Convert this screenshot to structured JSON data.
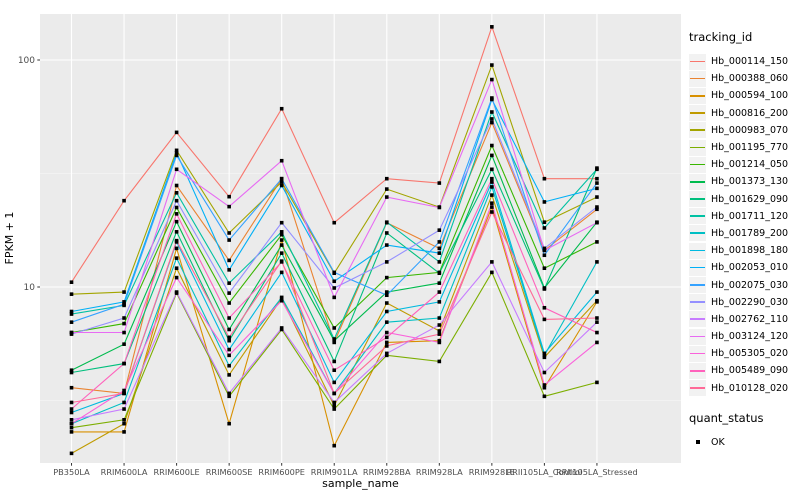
{
  "figure": {
    "xlabel": "sample_name",
    "ylabel": "FPKM + 1",
    "legend_title": "tracking_id",
    "quant_legend_title": "quant_status"
  },
  "colors": {
    "panel_bg": "#EBEBEB",
    "grid_major": "#FFFFFF",
    "grid_minor": "#F7F7F7",
    "tick_mark": "#333333",
    "tick_text": "#4D4D4D",
    "point": "#000000",
    "legend_key_bg": "#F2F2F2"
  },
  "chart_data": {
    "type": "line",
    "title": "",
    "xlabel": "sample_name",
    "ylabel": "FPKM + 1",
    "y_scale": "log10",
    "ylim": [
      1.68,
      160
    ],
    "y_ticks": [
      10,
      100
    ],
    "y_minor_gridlines": [
      3.1623,
      31.6228
    ],
    "grid": true,
    "legend_position": "right",
    "legend_title": "tracking_id",
    "point_marker": "black-square",
    "quant_status": {
      "title": "quant_status",
      "items": [
        {
          "label": "OK",
          "marker": "black-square"
        }
      ]
    },
    "categories": [
      "PB350LA",
      "RRIM600LA",
      "RRIM600LE",
      "RRIM600SE",
      "RRIM600PE",
      "RRIM901LA",
      "RRIM928BA",
      "RRIM928LA",
      "RRIM928LE",
      "RRII105LA_Control",
      "RRII105LA_Stressed"
    ],
    "series": [
      {
        "name": "Hb_000114_150",
        "color": "#F8766D",
        "values": [
          10.5,
          24,
          48,
          25,
          61,
          19.2,
          30,
          28.7,
          140,
          30,
          30
        ]
      },
      {
        "name": "Hb_000388_060",
        "color": "#EA8331",
        "values": [
          3.6,
          3.4,
          28,
          13.1,
          30,
          5.7,
          19.2,
          14.8,
          53,
          14.5,
          22
        ]
      },
      {
        "name": "Hb_000594_100",
        "color": "#D89000",
        "values": [
          2.3,
          2.3,
          14.8,
          2.5,
          16.1,
          2.0,
          5.7,
          5.8,
          22.5,
          3.6,
          8.6
        ]
      },
      {
        "name": "Hb_000816_200",
        "color": "#C09B00",
        "values": [
          1.85,
          2.5,
          12.1,
          4.1,
          8.9,
          3.0,
          8.5,
          6.4,
          25.4,
          4.9,
          8.7
        ]
      },
      {
        "name": "Hb_000983_070",
        "color": "#A3A500",
        "values": [
          9.3,
          9.5,
          40,
          17.3,
          29,
          11.5,
          27,
          22.5,
          95,
          19.3,
          24.9
        ]
      },
      {
        "name": "Hb_001195_770",
        "color": "#7CAE00",
        "values": [
          2.4,
          2.6,
          9.4,
          3.3,
          6.5,
          2.9,
          5.0,
          4.7,
          11.6,
          3.3,
          3.8
        ]
      },
      {
        "name": "Hb_001214_050",
        "color": "#39B600",
        "values": [
          6.3,
          6.9,
          22.4,
          8.5,
          17,
          6.6,
          11.0,
          11.6,
          42,
          12.1,
          15.8
        ]
      },
      {
        "name": "Hb_001373_130",
        "color": "#00BB4E",
        "values": [
          4.3,
          5.6,
          19.4,
          6.5,
          15.3,
          5.8,
          9.5,
          10.4,
          38,
          9.9,
          19.3
        ]
      },
      {
        "name": "Hb_001629_090",
        "color": "#00BF7D",
        "values": [
          4.2,
          4.6,
          17.5,
          5.8,
          14.1,
          4.7,
          17.3,
          11.5,
          33,
          9.8,
          33.4
        ]
      },
      {
        "name": "Hb_001711_120",
        "color": "#00C1A3",
        "values": [
          7.6,
          8.3,
          26,
          10.4,
          17.5,
          5.9,
          19.3,
          12.9,
          59,
          18.2,
          33
        ]
      },
      {
        "name": "Hb_001789_200",
        "color": "#00BFC4",
        "values": [
          2.5,
          3.1,
          13.4,
          4.5,
          9.0,
          3.4,
          7.0,
          7.3,
          27.6,
          5.0,
          12.9
        ]
      },
      {
        "name": "Hb_001898_180",
        "color": "#00BAE0",
        "values": [
          2.8,
          3.4,
          15.8,
          5.3,
          11.6,
          3.8,
          7.8,
          8.6,
          29,
          5.1,
          9.5
        ]
      },
      {
        "name": "Hb_002053_010",
        "color": "#00B0F6",
        "values": [
          7.8,
          8.6,
          39,
          11.9,
          28,
          10.6,
          15.3,
          14.1,
          67,
          23.7,
          27.2
        ]
      },
      {
        "name": "Hb_002075_030",
        "color": "#35A2FF",
        "values": [
          7.0,
          8.4,
          38,
          16.1,
          30,
          11.6,
          9.2,
          15.8,
          68,
          13.8,
          28.7
        ]
      },
      {
        "name": "Hb_002290_030",
        "color": "#9590FF",
        "values": [
          6.2,
          7.3,
          24,
          9.4,
          19.2,
          9.9,
          12.9,
          17.8,
          55,
          14.8,
          22.5
        ]
      },
      {
        "name": "Hb_002762_110",
        "color": "#C77CFF",
        "values": [
          2.6,
          2.9,
          9.5,
          3.4,
          6.6,
          3.1,
          5.1,
          6.8,
          12.9,
          4.2,
          7.0
        ]
      },
      {
        "name": "Hb_003124_120",
        "color": "#E76BF3",
        "values": [
          6.3,
          6.3,
          33,
          22.6,
          36,
          9.0,
          24.9,
          22.4,
          82,
          14.5,
          19.2
        ]
      },
      {
        "name": "Hb_005305_020",
        "color": "#FA62DB",
        "values": [
          2.5,
          3.5,
          11.0,
          5.0,
          8.7,
          3.4,
          6.3,
          5.7,
          23.4,
          3.7,
          5.7
        ]
      },
      {
        "name": "Hb_005489_090",
        "color": "#FF62BC",
        "values": [
          2.9,
          4.6,
          21,
          7.3,
          12.9,
          4.3,
          6.0,
          9.5,
          30,
          8.1,
          6.3
        ]
      },
      {
        "name": "Hb_010128_020",
        "color": "#FF6A98",
        "values": [
          3.1,
          3.4,
          16,
          6.0,
          13,
          3.4,
          5.5,
          6.2,
          21.4,
          7.2,
          7.3
        ]
      }
    ]
  }
}
